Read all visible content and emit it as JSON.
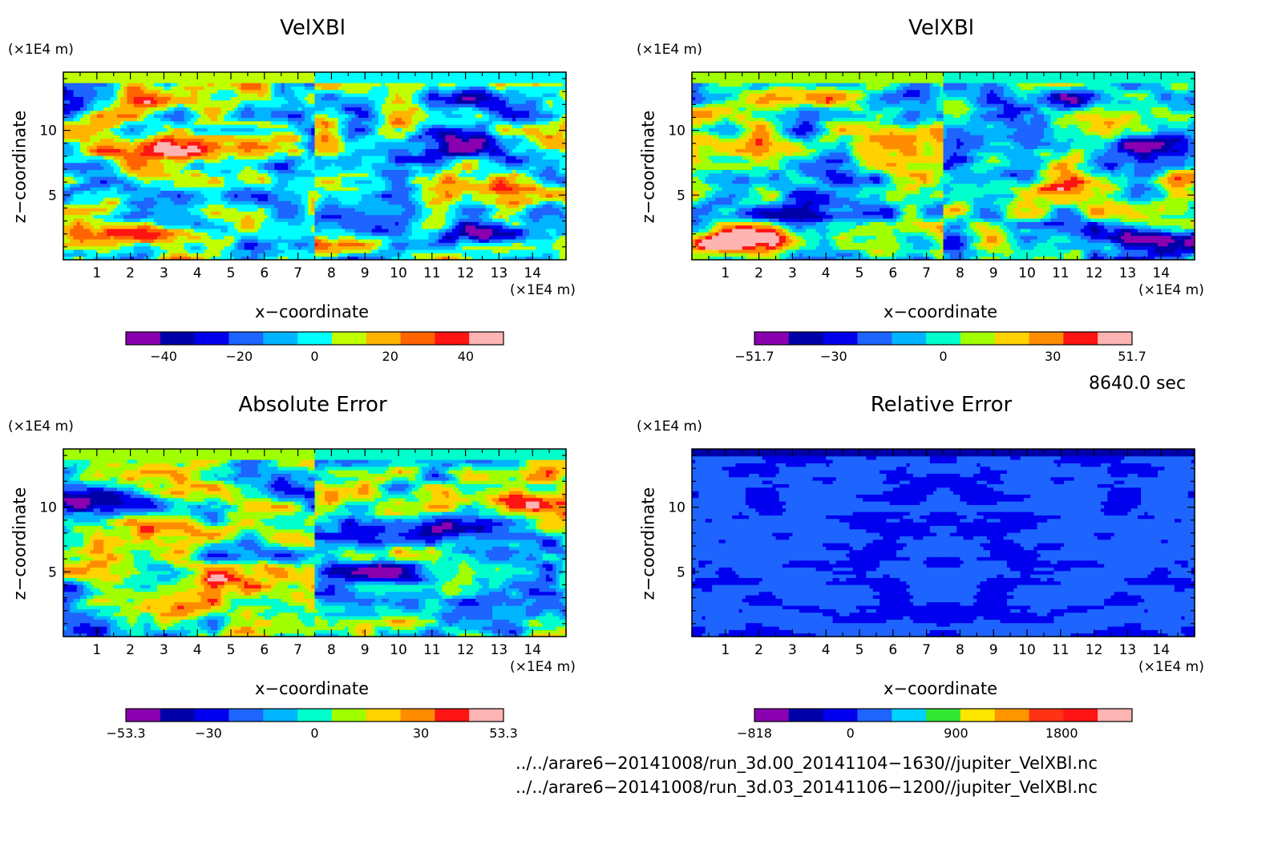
{
  "chart_data": [
    {
      "type": "heatmap",
      "title": "VelXBl",
      "xlabel": "x−coordinate",
      "ylabel": "z−coordinate",
      "x_unit": "(×1E4 m)",
      "y_unit": "(×1E4 m)",
      "xlim": [
        0,
        15
      ],
      "ylim": [
        0,
        14.5
      ],
      "xticks": [
        1,
        2,
        3,
        4,
        5,
        6,
        7,
        8,
        9,
        10,
        11,
        12,
        13,
        14
      ],
      "yticks": [
        5,
        10
      ],
      "colorbar": {
        "range": [
          -50,
          50
        ],
        "tick_values": [
          -40,
          -20,
          0,
          20,
          40
        ],
        "tick_labels": [
          "−40",
          "−20",
          "0",
          "20",
          "40"
        ],
        "colors": [
          "#8a00b0",
          "#0000a8",
          "#0000ee",
          "#1e64ff",
          "#00b4ff",
          "#00ffff",
          "#c0ff00",
          "#ffb400",
          "#ff6400",
          "#ff1414",
          "#ffb4b4"
        ]
      },
      "features": [
        {
          "x": 2.2,
          "z": 1.8,
          "value": 45
        },
        {
          "x": 12.8,
          "z": 1.8,
          "value": -45
        },
        {
          "x": 3.2,
          "z": 8.5,
          "value": 42
        },
        {
          "x": 12.0,
          "z": 8.8,
          "value": -42
        },
        {
          "x": 3.5,
          "z": 12.5,
          "value": 22
        },
        {
          "x": 11.5,
          "z": 12.5,
          "value": -22
        },
        {
          "x": 2.0,
          "z": 5.5,
          "value": -20
        },
        {
          "x": 13.0,
          "z": 5.5,
          "value": 20
        }
      ]
    },
    {
      "type": "heatmap",
      "title": "VelXBl",
      "xlabel": "x−coordinate",
      "ylabel": "z−coordinate",
      "x_unit": "(×1E4 m)",
      "y_unit": "(×1E4 m)",
      "xlim": [
        0,
        15
      ],
      "ylim": [
        0,
        14.5
      ],
      "xticks": [
        1,
        2,
        3,
        4,
        5,
        6,
        7,
        8,
        9,
        10,
        11,
        12,
        13,
        14
      ],
      "yticks": [
        5,
        10
      ],
      "colorbar": {
        "range": [
          -51.7,
          51.7
        ],
        "tick_values": [
          -51.7,
          -30,
          0,
          30,
          51.7
        ],
        "tick_labels": [
          "−51.7",
          "−30",
          "0",
          "30",
          "51.7"
        ],
        "colors": [
          "#8a00b0",
          "#0000a8",
          "#0000ee",
          "#1e64ff",
          "#00b4ff",
          "#00ffcc",
          "#a0ff00",
          "#ffd200",
          "#ff8c00",
          "#ff1414",
          "#ffb4b4"
        ]
      },
      "features": [
        {
          "x": 1.5,
          "z": 1.5,
          "value": 48
        },
        {
          "x": 13.8,
          "z": 1.5,
          "value": -48
        },
        {
          "x": 1.0,
          "z": 9.0,
          "value": 40
        },
        {
          "x": 13.8,
          "z": 9.0,
          "value": -40
        },
        {
          "x": 3.5,
          "z": 12.5,
          "value": 25
        },
        {
          "x": 11.5,
          "z": 12.5,
          "value": -25
        },
        {
          "x": 3.0,
          "z": 3.5,
          "value": -22
        },
        {
          "x": 10.5,
          "z": 5.5,
          "value": 22
        }
      ]
    },
    {
      "type": "heatmap",
      "title": "Absolute Error",
      "xlabel": "x−coordinate",
      "ylabel": "z−coordinate",
      "x_unit": "(×1E4 m)",
      "y_unit": "(×1E4 m)",
      "xlim": [
        0,
        15
      ],
      "ylim": [
        0,
        14.5
      ],
      "xticks": [
        1,
        2,
        3,
        4,
        5,
        6,
        7,
        8,
        9,
        10,
        11,
        12,
        13,
        14
      ],
      "yticks": [
        5,
        10
      ],
      "colorbar": {
        "range": [
          -53.3,
          53.3
        ],
        "tick_values": [
          -53.3,
          -30,
          0,
          30,
          53.3
        ],
        "tick_labels": [
          "−53.3",
          "−30",
          "0",
          "30",
          "53.3"
        ],
        "colors": [
          "#8a00b0",
          "#0000a8",
          "#0000ee",
          "#1e64ff",
          "#00b4ff",
          "#00ffcc",
          "#a0ff00",
          "#ffd200",
          "#ff8c00",
          "#ff1414",
          "#ffb4b4"
        ]
      },
      "features": [
        {
          "x": 5.5,
          "z": 5.0,
          "value": 40
        },
        {
          "x": 9.5,
          "z": 5.0,
          "value": -40
        },
        {
          "x": 1.5,
          "z": 10.5,
          "value": -35
        },
        {
          "x": 13.5,
          "z": 10.5,
          "value": 35
        },
        {
          "x": 4.0,
          "z": 8.0,
          "value": 28
        },
        {
          "x": 11.0,
          "z": 8.0,
          "value": -28
        },
        {
          "x": 3.0,
          "z": 2.5,
          "value": 22
        },
        {
          "x": 12.0,
          "z": 2.5,
          "value": -22
        }
      ]
    },
    {
      "type": "heatmap",
      "title": "Relative Error",
      "xlabel": "x−coordinate",
      "ylabel": "z−coordinate",
      "x_unit": "(×1E4 m)",
      "y_unit": "(×1E4 m)",
      "xlim": [
        0,
        15
      ],
      "ylim": [
        0,
        14.5
      ],
      "xticks": [
        1,
        2,
        3,
        4,
        5,
        6,
        7,
        8,
        9,
        10,
        11,
        12,
        13,
        14
      ],
      "yticks": [
        5,
        10
      ],
      "colorbar": {
        "range": [
          -818,
          2400
        ],
        "tick_values": [
          -818,
          0,
          900,
          1800
        ],
        "tick_labels": [
          "−818",
          "0",
          "900",
          "1800"
        ],
        "colors": [
          "#8a00b0",
          "#0000a8",
          "#0000ee",
          "#1e64ff",
          "#00d2ff",
          "#32e632",
          "#ffe600",
          "#ff9600",
          "#ff3214",
          "#ff1414",
          "#ffb4b4"
        ]
      },
      "features": []
    }
  ],
  "time_label": "8640.0 sec",
  "files": [
    "../../arare6−20141008/run_3d.00_20141104−1630//jupiter_VelXBl.nc",
    "../../arare6−20141008/run_3d.03_20141106−1200//jupiter_VelXBl.nc"
  ]
}
